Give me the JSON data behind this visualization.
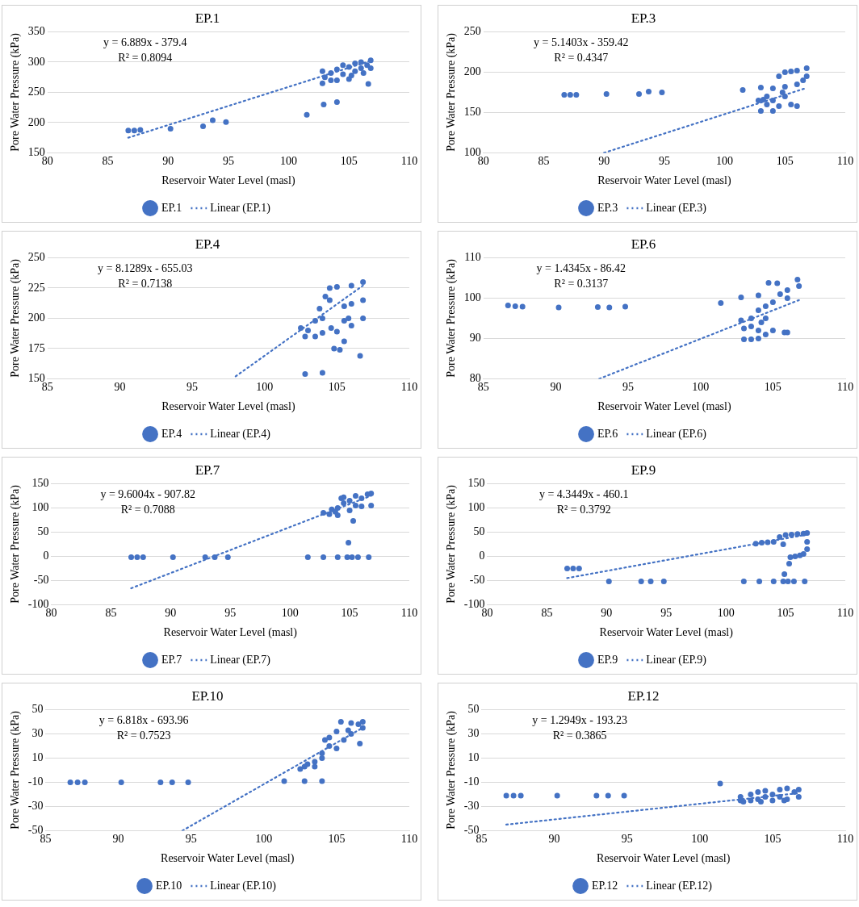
{
  "chart_data": [
    {
      "type": "scatter",
      "title": "EP.1",
      "xlabel": "Reservoir Water Level (masl)",
      "ylabel": "Pore Water Pressure (kPa)",
      "xlim": [
        80,
        110
      ],
      "xticks": [
        80,
        85,
        90,
        95,
        100,
        105,
        110
      ],
      "ylim": [
        150,
        350
      ],
      "yticks": [
        150,
        200,
        250,
        300,
        350
      ],
      "grid": "y",
      "legend": "bottom",
      "annotations": [
        "y = 6.889x - 379.4",
        "R² = 0.8094"
      ],
      "series": [
        {
          "name": "EP.1",
          "type": "scatter",
          "marker": "circle",
          "color": "#4472c4",
          "x": [
            86.7,
            87.2,
            87.7,
            90.2,
            92.9,
            93.7,
            94.8,
            101.5,
            102.9,
            104,
            106.6,
            102.8,
            102.8,
            103,
            103.5,
            104,
            104,
            104.5,
            105,
            105,
            105.5,
            105.5,
            106,
            106,
            106.5,
            106.8,
            106.8,
            103.5,
            104.5,
            105.2,
            106.2
          ],
          "values": [
            187,
            187,
            188,
            190,
            194,
            204,
            201,
            213,
            230,
            234,
            264,
            265,
            285,
            275,
            282,
            270,
            288,
            280,
            272,
            292,
            285,
            298,
            290,
            300,
            295,
            303,
            290,
            270,
            295,
            278,
            282
          ]
        },
        {
          "name": "Linear (EP.1)",
          "type": "line",
          "marker": "none",
          "color": "#4472c4",
          "line_style": "dotted",
          "x": [
            86.7,
            106.8
          ],
          "values": [
            175,
            302
          ]
        }
      ]
    },
    {
      "type": "scatter",
      "title": "EP.3",
      "xlabel": "Reservoir Water Level (masl)",
      "ylabel": "Pore Water Pressure (kPa)",
      "xlim": [
        80,
        110
      ],
      "xticks": [
        80,
        85,
        90,
        95,
        100,
        105,
        110
      ],
      "ylim": [
        100,
        250
      ],
      "yticks": [
        100,
        150,
        200,
        250
      ],
      "grid": "y",
      "legend": "bottom",
      "annotations": [
        "y = 5.1403x - 359.42",
        "R² = 0.4347"
      ],
      "series": [
        {
          "name": "EP.3",
          "type": "scatter",
          "marker": "circle",
          "color": "#4472c4",
          "x": [
            86.7,
            87.2,
            87.7,
            90.2,
            92.9,
            93.7,
            94.8,
            101.5,
            102.8,
            103,
            103,
            103.5,
            103.5,
            104,
            104,
            104,
            104.5,
            104.5,
            105,
            105,
            105,
            105.5,
            105.5,
            106,
            106,
            106,
            106.5,
            106.8,
            106.8,
            104.8,
            103.2
          ],
          "values": [
            172,
            172,
            172,
            173,
            173,
            176,
            175,
            178,
            165,
            181,
            152,
            160,
            170,
            152,
            165,
            180,
            158,
            195,
            200,
            170,
            182,
            160,
            201,
            158,
            185,
            202,
            190,
            205,
            195,
            175,
            166
          ]
        },
        {
          "name": "Linear (EP.3)",
          "type": "line",
          "marker": "none",
          "color": "#4472c4",
          "line_style": "dotted",
          "x": [
            90,
            106.7
          ],
          "values": [
            100,
            180
          ]
        }
      ]
    },
    {
      "type": "scatter",
      "title": "EP.4",
      "xlabel": "Reservoir Water Level (masl)",
      "ylabel": "Pore Water Pressure (kPa)",
      "xlim": [
        85,
        110
      ],
      "xticks": [
        85,
        90,
        95,
        100,
        105,
        110
      ],
      "ylim": [
        150,
        250
      ],
      "yticks": [
        150,
        175,
        200,
        225,
        250
      ],
      "grid": "y",
      "legend": "bottom",
      "annotations": [
        "y = 8.1289x - 655.03",
        "R² = 0.7138"
      ],
      "series": [
        {
          "name": "EP.4",
          "type": "scatter",
          "marker": "circle",
          "color": "#4472c4",
          "x": [
            102.8,
            104,
            102.5,
            102.8,
            103,
            103.5,
            103.5,
            104,
            104,
            104.5,
            104.5,
            105,
            105,
            104.8,
            105.2,
            105.5,
            105.5,
            105.5,
            106,
            106,
            106,
            106.6,
            106.8,
            106.8,
            106.8,
            104.2,
            103.8,
            105.8,
            104.6
          ],
          "values": [
            154,
            155,
            192,
            185,
            190,
            198,
            185,
            200,
            188,
            215,
            225,
            226,
            189,
            175,
            174,
            181,
            198,
            210,
            212,
            227,
            194,
            169,
            230,
            215,
            200,
            218,
            208,
            200,
            192
          ]
        },
        {
          "name": "Linear (EP.4)",
          "type": "line",
          "marker": "none",
          "color": "#4472c4",
          "line_style": "dotted",
          "x": [
            98,
            106.8
          ],
          "values": [
            152,
            227
          ]
        }
      ]
    },
    {
      "type": "scatter",
      "title": "EP.6",
      "xlabel": "Reservoir Water Level (masl)",
      "ylabel": "Pore Water Pressure (kPa)",
      "xlim": [
        85,
        110
      ],
      "xticks": [
        85,
        90,
        95,
        100,
        105,
        110
      ],
      "ylim": [
        80,
        110
      ],
      "yticks": [
        80,
        90,
        100,
        110
      ],
      "grid": "y",
      "legend": "bottom",
      "annotations": [
        "y = 1.4345x - 86.42",
        "R² = 0.3137"
      ],
      "series": [
        {
          "name": "EP.6",
          "type": "scatter",
          "marker": "circle",
          "color": "#4472c4",
          "x": [
            86.7,
            87.2,
            87.7,
            90.2,
            92.9,
            93.7,
            94.8,
            101.4,
            102.8,
            102.8,
            103,
            103,
            103.5,
            103.5,
            103.5,
            104,
            104,
            104,
            104,
            104.5,
            104.5,
            104.5,
            104.7,
            105,
            105,
            105.3,
            105.5,
            106,
            106,
            106,
            106.7,
            106.8,
            105.8,
            104.2
          ],
          "values": [
            98.2,
            98,
            97.9,
            97.7,
            97.8,
            97.7,
            97.9,
            98.8,
            100.2,
            94.5,
            89.8,
            92.5,
            93,
            95,
            89.8,
            90,
            92,
            97,
            100.7,
            91,
            95,
            98,
            103.8,
            92,
            99,
            103.7,
            101,
            91.5,
            100,
            102,
            104.6,
            103,
            91.5,
            94
          ]
        },
        {
          "name": "Linear (EP.6)",
          "type": "line",
          "marker": "none",
          "color": "#4472c4",
          "line_style": "dotted",
          "x": [
            93,
            106.8
          ],
          "values": [
            80,
            99.5
          ]
        }
      ]
    },
    {
      "type": "scatter",
      "title": "EP.7",
      "xlabel": "Reservoir Water Level (masl)",
      "ylabel": "Pore Water Pressure (kPa)",
      "xlim": [
        80,
        110
      ],
      "xticks": [
        80,
        85,
        90,
        95,
        100,
        105,
        110
      ],
      "ylim": [
        -100,
        150
      ],
      "yticks": [
        -100,
        -50,
        0,
        50,
        100,
        150
      ],
      "grid": "y",
      "legend": "bottom",
      "annotations": [
        "y = 9.6004x - 907.82",
        "R² = 0.7088"
      ],
      "series": [
        {
          "name": "EP.7",
          "type": "scatter",
          "marker": "circle",
          "color": "#4472c4",
          "x": [
            86.7,
            87.2,
            87.7,
            90.2,
            92.9,
            93.7,
            94.8,
            101.5,
            102.8,
            104,
            104.8,
            105.2,
            105.7,
            106.6,
            104.9,
            105.3,
            102.8,
            103.3,
            103.5,
            104,
            104,
            104.5,
            104.5,
            105,
            105,
            105.5,
            105.5,
            106,
            106,
            106.5,
            106.8,
            106.8,
            104.3,
            103.8
          ],
          "values": [
            -2,
            -2,
            -2,
            -2,
            -2,
            -2,
            -2,
            -2,
            -2,
            -2,
            -2,
            -2,
            -2,
            -2,
            28,
            73,
            90,
            87,
            97,
            85,
            100,
            110,
            122,
            95,
            115,
            125,
            105,
            103,
            120,
            128,
            130,
            105,
            120,
            92
          ]
        },
        {
          "name": "Linear (EP.7)",
          "type": "line",
          "marker": "none",
          "color": "#4472c4",
          "line_style": "dotted",
          "x": [
            86.7,
            106.8
          ],
          "values": [
            -66,
            125
          ]
        }
      ]
    },
    {
      "type": "scatter",
      "title": "EP.9",
      "xlabel": "Reservoir Water Level (masl)",
      "ylabel": "Pore Water Pressure (kPa)",
      "xlim": [
        80,
        110
      ],
      "xticks": [
        80,
        85,
        90,
        95,
        100,
        105,
        110
      ],
      "ylim": [
        -100,
        150
      ],
      "yticks": [
        -100,
        -50,
        0,
        50,
        100,
        150
      ],
      "grid": "y",
      "legend": "bottom",
      "annotations": [
        "y = 4.3449x - 460.1",
        "R² = 0.3792"
      ],
      "series": [
        {
          "name": "EP.9",
          "type": "scatter",
          "marker": "circle",
          "color": "#4472c4",
          "x": [
            86.7,
            87.2,
            87.7,
            90.2,
            92.9,
            93.7,
            94.8,
            101.5,
            102.8,
            104,
            104.8,
            105.2,
            105.7,
            106.6,
            104.9,
            105.3,
            105.4,
            105.8,
            106.2,
            106.5,
            102.5,
            103,
            103.5,
            104,
            104.5,
            105,
            105.5,
            106,
            106.5,
            106.8,
            106.8,
            106.8,
            104.8
          ],
          "values": [
            -25,
            -25,
            -25,
            -52,
            -52,
            -52,
            -52,
            -52,
            -52,
            -52,
            -52,
            -52,
            -52,
            -52,
            -37,
            -15,
            -2,
            0,
            2,
            5,
            26,
            28,
            29,
            30,
            40,
            44,
            45,
            46,
            47,
            48,
            30,
            15,
            25
          ]
        },
        {
          "name": "Linear (EP.9)",
          "type": "line",
          "marker": "none",
          "color": "#4472c4",
          "line_style": "dotted",
          "x": [
            86.7,
            106.8
          ],
          "values": [
            -45,
            45
          ]
        }
      ]
    },
    {
      "type": "scatter",
      "title": "EP.10",
      "xlabel": "Reservoir Water Level (masl)",
      "ylabel": "Pore Water Pressure (kPa)",
      "xlim": [
        85,
        110
      ],
      "xticks": [
        85,
        90,
        95,
        100,
        105,
        110
      ],
      "ylim": [
        -50,
        50
      ],
      "yticks": [
        -50,
        -30,
        -10,
        10,
        30,
        50
      ],
      "grid": "y",
      "legend": "bottom",
      "annotations": [
        "y = 6.818x - 693.96",
        "R² = 0.7523"
      ],
      "series": [
        {
          "name": "EP.10",
          "type": "scatter",
          "marker": "circle",
          "color": "#4472c4",
          "x": [
            86.7,
            87.2,
            87.7,
            90.2,
            92.9,
            93.7,
            94.8,
            101.4,
            102.8,
            104,
            102.5,
            102.8,
            103,
            103.5,
            103.5,
            104,
            104,
            104.5,
            104.5,
            105,
            105,
            105.3,
            105.5,
            106,
            106,
            106.5,
            106.6,
            106.8,
            106.8,
            104.2,
            105.8
          ],
          "values": [
            -10,
            -10,
            -10,
            -10,
            -10,
            -10,
            -10,
            -9,
            -9,
            -9,
            1,
            3,
            5,
            7,
            3,
            10,
            14,
            20,
            27,
            32,
            18,
            40,
            25,
            30,
            39,
            38,
            22,
            35,
            40,
            25,
            33
          ]
        },
        {
          "name": "Linear (EP.10)",
          "type": "line",
          "marker": "none",
          "color": "#4472c4",
          "line_style": "dotted",
          "x": [
            94.4,
            106.8
          ],
          "values": [
            -50,
            35
          ]
        }
      ]
    },
    {
      "type": "scatter",
      "title": "EP.12",
      "xlabel": "Reservoir Water Level (masl)",
      "ylabel": "Pore Water Pressure (kPa)",
      "xlim": [
        85,
        110
      ],
      "xticks": [
        85,
        90,
        95,
        100,
        105,
        110
      ],
      "ylim": [
        -50,
        50
      ],
      "yticks": [
        -50,
        -30,
        -10,
        10,
        30,
        50
      ],
      "grid": "y",
      "legend": "bottom",
      "annotations": [
        "y = 1.2949x - 193.23",
        "R² = 0.3865"
      ],
      "series": [
        {
          "name": "EP.12",
          "type": "scatter",
          "marker": "circle",
          "color": "#4472c4",
          "x": [
            86.7,
            87.2,
            87.7,
            90.2,
            92.9,
            93.7,
            94.8,
            101.4,
            102.8,
            102.8,
            103,
            103.5,
            103.5,
            104,
            104,
            104.5,
            104.5,
            105,
            105,
            105.5,
            105.5,
            106,
            106,
            106.5,
            106.8,
            106.8,
            104.2,
            105.8
          ],
          "values": [
            -21,
            -21,
            -21,
            -21,
            -21,
            -21,
            -21,
            -11,
            -25,
            -22,
            -26,
            -20,
            -25,
            -18,
            -24,
            -22,
            -17,
            -20,
            -25,
            -16,
            -22,
            -15,
            -24,
            -18,
            -16,
            -22,
            -26,
            -25
          ]
        },
        {
          "name": "Linear (EP.12)",
          "type": "line",
          "marker": "none",
          "color": "#4472c4",
          "line_style": "dotted",
          "x": [
            86.7,
            106.8
          ],
          "values": [
            -45,
            -19
          ]
        }
      ]
    }
  ]
}
